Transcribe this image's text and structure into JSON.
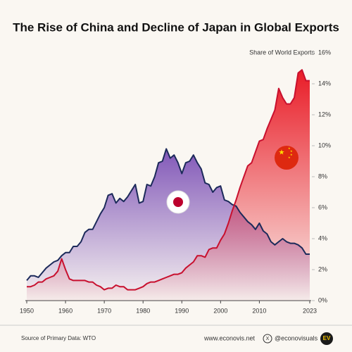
{
  "chart_data": {
    "type": "area-line",
    "title": "The Rise of China and Decline of Japan in Global Exports",
    "ylabel": "Share of World Exports",
    "source": "Source of Primary Data: WTO",
    "website": "www.econovis.net",
    "handle": "@econovisuals",
    "logo": "EV",
    "x": [
      1950,
      1951,
      1952,
      1953,
      1954,
      1955,
      1956,
      1957,
      1958,
      1959,
      1960,
      1961,
      1962,
      1963,
      1964,
      1965,
      1966,
      1967,
      1968,
      1969,
      1970,
      1971,
      1972,
      1973,
      1974,
      1975,
      1976,
      1977,
      1978,
      1979,
      1980,
      1981,
      1982,
      1983,
      1984,
      1985,
      1986,
      1987,
      1988,
      1989,
      1990,
      1991,
      1992,
      1993,
      1994,
      1995,
      1996,
      1997,
      1998,
      1999,
      2000,
      2001,
      2002,
      2003,
      2004,
      2005,
      2006,
      2007,
      2008,
      2009,
      2010,
      2011,
      2012,
      2013,
      2014,
      2015,
      2016,
      2017,
      2018,
      2019,
      2020,
      2021,
      2022,
      2023
    ],
    "series": [
      {
        "color": "#1c2a5a",
        "fill": "#7b4fb5",
        "values": [
          1.3,
          1.6,
          1.6,
          1.5,
          1.8,
          2.1,
          2.3,
          2.5,
          2.6,
          2.9,
          3.1,
          3.1,
          3.5,
          3.5,
          3.8,
          4.4,
          4.6,
          4.6,
          5.1,
          5.6,
          6.0,
          6.8,
          6.9,
          6.3,
          6.6,
          6.4,
          6.7,
          7.1,
          7.5,
          6.3,
          6.4,
          7.5,
          7.4,
          8.0,
          8.9,
          9.0,
          9.8,
          9.2,
          9.4,
          8.9,
          8.2,
          8.9,
          9.0,
          9.4,
          8.9,
          8.5,
          7.6,
          7.5,
          7.0,
          7.3,
          7.4,
          6.5,
          6.4,
          6.2,
          6.1,
          5.7,
          5.4,
          5.1,
          4.9,
          4.6,
          5.0,
          4.5,
          4.3,
          3.8,
          3.6,
          3.8,
          4.0,
          3.8,
          3.7,
          3.7,
          3.6,
          3.4,
          3.0,
          3.0
        ]
      },
      {
        "color": "#c8102e",
        "fill": "#e8101c",
        "values": [
          0.9,
          0.9,
          1.0,
          1.2,
          1.2,
          1.4,
          1.5,
          1.6,
          1.9,
          2.7,
          2.0,
          1.4,
          1.3,
          1.3,
          1.3,
          1.3,
          1.2,
          1.2,
          1.0,
          0.9,
          0.7,
          0.8,
          0.8,
          1.0,
          0.9,
          0.9,
          0.7,
          0.7,
          0.7,
          0.8,
          0.9,
          1.1,
          1.2,
          1.2,
          1.3,
          1.4,
          1.5,
          1.6,
          1.7,
          1.7,
          1.8,
          2.1,
          2.3,
          2.5,
          2.9,
          2.9,
          2.8,
          3.3,
          3.4,
          3.4,
          3.9,
          4.3,
          5.0,
          5.8,
          6.5,
          7.3,
          8.0,
          8.7,
          8.9,
          9.6,
          10.3,
          10.4,
          11.1,
          11.7,
          12.3,
          13.7,
          13.1,
          12.7,
          12.7,
          13.1,
          14.7,
          14.9,
          14.2,
          14.2
        ]
      }
    ],
    "xlim": [
      1950,
      2023
    ],
    "xticks": [
      1950,
      1960,
      1970,
      1980,
      1990,
      2000,
      2010,
      2023
    ],
    "ylim": [
      0,
      16
    ],
    "yticks": [
      {
        "value": 0,
        "label": "0%"
      },
      {
        "value": 2,
        "label": "2%"
      },
      {
        "value": 4,
        "label": "4%"
      },
      {
        "value": 6,
        "label": "6%"
      },
      {
        "value": 8,
        "label": "8%"
      },
      {
        "value": 10,
        "label": "10%"
      },
      {
        "value": 12,
        "label": "12%"
      },
      {
        "value": 14,
        "label": "14%"
      },
      {
        "value": 16,
        "label": "16%"
      }
    ]
  }
}
